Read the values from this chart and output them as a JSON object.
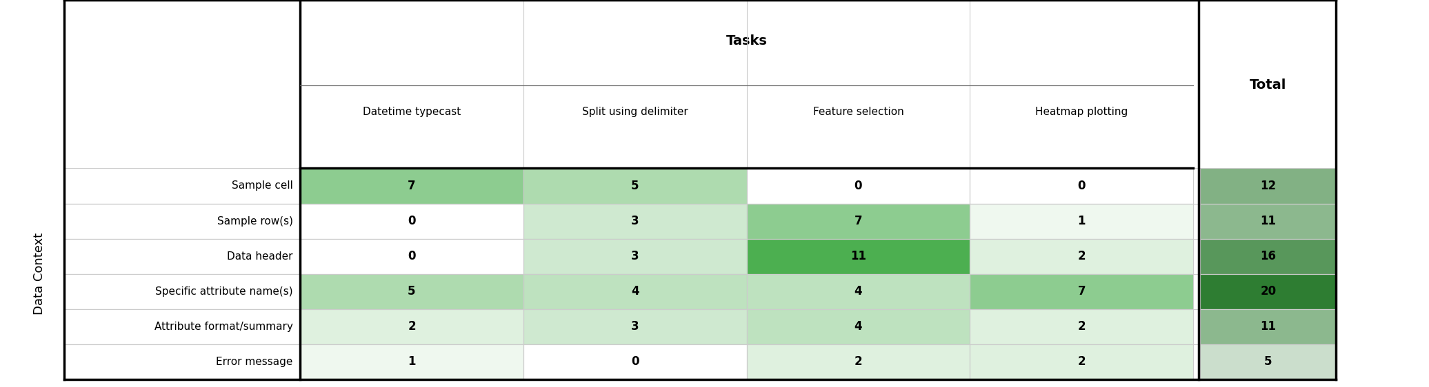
{
  "row_labels": [
    "Sample cell",
    "Sample row(s)",
    "Data header",
    "Specific attribute name(s)",
    "Attribute format/summary",
    "Error message"
  ],
  "col_labels": [
    "Datetime typecast",
    "Split using delimiter",
    "Feature selection",
    "Heatmap plotting"
  ],
  "values": [
    [
      7,
      5,
      0,
      0
    ],
    [
      0,
      3,
      7,
      1
    ],
    [
      0,
      3,
      11,
      2
    ],
    [
      5,
      4,
      4,
      7
    ],
    [
      2,
      3,
      4,
      2
    ],
    [
      1,
      0,
      2,
      2
    ]
  ],
  "totals": [
    12,
    11,
    16,
    20,
    11,
    5
  ],
  "tasks_header": "Tasks",
  "total_header": "Total",
  "ylabel": "Data Context",
  "max_val": 11,
  "bg_color": "#ffffff",
  "cell_color_min": "#ffffff",
  "cell_color_max": "#4caf50",
  "total_color_min": "#ffffff",
  "total_color_max": "#2e7d32",
  "header_line_color": "#000000",
  "outer_border_color": "#000000",
  "text_color": "#000000",
  "title_fontsize": 14,
  "label_fontsize": 11,
  "cell_fontsize": 12,
  "ylabel_fontsize": 13
}
